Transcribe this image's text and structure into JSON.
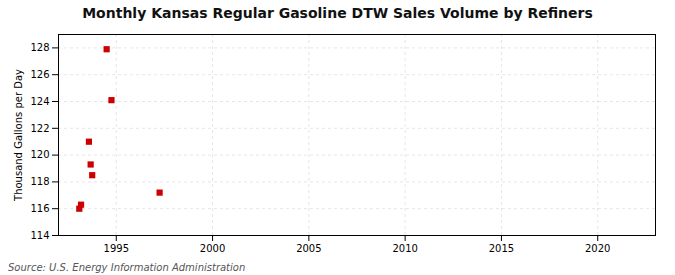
{
  "chart_data": {
    "type": "scatter",
    "title": "Monthly Kansas Regular Gasoline DTW Sales Volume by Refiners",
    "ylabel": "Thousand Gallons per Day",
    "source": "Source: U.S. Energy Information Administration",
    "x": [
      1993.08,
      1993.17,
      1993.58,
      1993.67,
      1993.75,
      1994.5,
      1994.75,
      1997.25
    ],
    "values": [
      116.0,
      116.3,
      121.0,
      119.3,
      118.5,
      127.9,
      124.1,
      117.2
    ],
    "color": "#cc0000",
    "marker": "square",
    "xlim": [
      1992.0,
      2023.0
    ],
    "ylim": [
      114,
      129
    ],
    "xticks": [
      1995,
      2000,
      2005,
      2010,
      2015,
      2020
    ],
    "yticks": [
      114,
      116,
      118,
      120,
      122,
      124,
      126,
      128
    ],
    "grid": true
  }
}
